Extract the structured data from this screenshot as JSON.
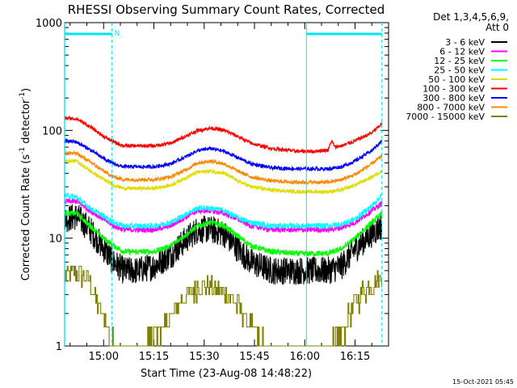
{
  "chart_data": {
    "type": "line",
    "title": "RHESSI Observing Summary Count Rates, Corrected",
    "xlabel": "Start Time (23-Aug-08 14:48:22)",
    "ylabel_main": "Corrected Count Rate (s",
    "ylabel_sup1": "-1",
    "ylabel_mid": " detector",
    "ylabel_sup2": "-1",
    "ylabel_end": ")",
    "yscale": "log",
    "ylim": [
      1,
      1000
    ],
    "xlim_min": [
      48.37,
      125
    ],
    "x_ticks": [
      {
        "value": 60,
        "label": "15:00"
      },
      {
        "value": 75,
        "label": "15:15"
      },
      {
        "value": 90,
        "label": "15:30"
      },
      {
        "value": 105,
        "label": "15:45"
      },
      {
        "value": 120,
        "label": "16:00"
      },
      {
        "value": 135,
        "label": "16:15"
      }
    ],
    "y_ticks": [
      {
        "value": 1,
        "label": "1"
      },
      {
        "value": 10,
        "label": "10"
      },
      {
        "value": 100,
        "label": "100"
      },
      {
        "value": 1000,
        "label": "1000"
      }
    ],
    "legend_header": [
      "Det 1,3,4,5,6,9,",
      "Att 0"
    ],
    "series": [
      {
        "name": "3 - 6 keV",
        "color": "#000000",
        "noise": 0.1,
        "points": [
          [
            48.4,
            15
          ],
          [
            52,
            16
          ],
          [
            56,
            12
          ],
          [
            60,
            8
          ],
          [
            63,
            6
          ],
          [
            66,
            5
          ],
          [
            70,
            5
          ],
          [
            75,
            5.5
          ],
          [
            80,
            7
          ],
          [
            85,
            10
          ],
          [
            88,
            12
          ],
          [
            92,
            12
          ],
          [
            96,
            11
          ],
          [
            100,
            8
          ],
          [
            104,
            6
          ],
          [
            110,
            5
          ],
          [
            118,
            5
          ],
          [
            123,
            5
          ],
          [
            127,
            5
          ],
          [
            131,
            5.5
          ],
          [
            135,
            8
          ],
          [
            140,
            11
          ],
          [
            143,
            13
          ]
        ]
      },
      {
        "name": "6 - 12 keV",
        "color": "#ff00ff",
        "noise": 0.06,
        "points": [
          [
            48.4,
            22
          ],
          [
            52,
            22
          ],
          [
            56,
            18
          ],
          [
            60,
            15
          ],
          [
            63,
            13
          ],
          [
            66,
            12
          ],
          [
            75,
            12
          ],
          [
            80,
            13
          ],
          [
            85,
            16
          ],
          [
            88,
            18
          ],
          [
            92,
            18
          ],
          [
            96,
            17
          ],
          [
            100,
            15
          ],
          [
            104,
            13
          ],
          [
            110,
            12
          ],
          [
            118,
            12
          ],
          [
            123,
            12
          ],
          [
            127,
            12
          ],
          [
            131,
            12.5
          ],
          [
            135,
            14
          ],
          [
            140,
            18
          ],
          [
            143,
            21
          ]
        ]
      },
      {
        "name": "12 - 25 keV",
        "color": "#00ff00",
        "noise": 0.06,
        "points": [
          [
            48.4,
            17
          ],
          [
            52,
            17
          ],
          [
            56,
            13
          ],
          [
            60,
            10
          ],
          [
            63,
            8.5
          ],
          [
            66,
            7.5
          ],
          [
            75,
            7.5
          ],
          [
            80,
            8.5
          ],
          [
            85,
            11
          ],
          [
            88,
            13
          ],
          [
            92,
            14
          ],
          [
            96,
            13
          ],
          [
            100,
            10.5
          ],
          [
            104,
            8.5
          ],
          [
            110,
            7.5
          ],
          [
            118,
            7.2
          ],
          [
            123,
            7.2
          ],
          [
            127,
            7.2
          ],
          [
            131,
            8
          ],
          [
            135,
            10
          ],
          [
            140,
            14
          ],
          [
            143,
            17
          ]
        ]
      },
      {
        "name": "25 - 50 keV",
        "color": "#00ffff",
        "noise": 0.06,
        "points": [
          [
            48.4,
            25
          ],
          [
            52,
            24
          ],
          [
            56,
            19
          ],
          [
            60,
            16
          ],
          [
            63,
            14
          ],
          [
            66,
            13
          ],
          [
            75,
            13
          ],
          [
            80,
            14
          ],
          [
            85,
            17
          ],
          [
            88,
            19
          ],
          [
            92,
            19
          ],
          [
            96,
            18
          ],
          [
            100,
            15.5
          ],
          [
            104,
            14
          ],
          [
            110,
            13
          ],
          [
            118,
            13
          ],
          [
            123,
            13
          ],
          [
            127,
            13
          ],
          [
            131,
            13.5
          ],
          [
            135,
            15
          ],
          [
            140,
            20
          ],
          [
            143,
            25
          ]
        ]
      },
      {
        "name": "50 - 100 keV",
        "color": "#dddd00",
        "noise": 0.04,
        "points": [
          [
            48.4,
            52
          ],
          [
            52,
            52
          ],
          [
            56,
            42
          ],
          [
            60,
            35
          ],
          [
            63,
            31
          ],
          [
            66,
            29
          ],
          [
            75,
            29
          ],
          [
            80,
            31
          ],
          [
            85,
            37
          ],
          [
            88,
            41
          ],
          [
            92,
            42
          ],
          [
            96,
            40
          ],
          [
            100,
            34
          ],
          [
            104,
            30
          ],
          [
            110,
            28
          ],
          [
            118,
            27
          ],
          [
            123,
            27
          ],
          [
            127,
            27
          ],
          [
            131,
            28
          ],
          [
            135,
            31
          ],
          [
            140,
            37
          ],
          [
            143,
            42
          ]
        ]
      },
      {
        "name": "100 - 300 keV",
        "color": "#ff0000",
        "noise": 0.04,
        "points": [
          [
            48.4,
            130
          ],
          [
            52,
            128
          ],
          [
            56,
            108
          ],
          [
            60,
            88
          ],
          [
            63,
            78
          ],
          [
            66,
            72
          ],
          [
            75,
            72
          ],
          [
            80,
            76
          ],
          [
            85,
            90
          ],
          [
            88,
            100
          ],
          [
            92,
            105
          ],
          [
            96,
            100
          ],
          [
            100,
            88
          ],
          [
            104,
            76
          ],
          [
            110,
            68
          ],
          [
            118,
            64
          ],
          [
            123,
            64
          ],
          [
            127,
            66
          ],
          [
            128,
            80
          ],
          [
            129,
            70
          ],
          [
            131,
            72
          ],
          [
            135,
            80
          ],
          [
            140,
            95
          ],
          [
            143,
            115
          ]
        ]
      },
      {
        "name": "300 - 800 keV",
        "color": "#0000ff",
        "noise": 0.04,
        "points": [
          [
            48.4,
            80
          ],
          [
            52,
            78
          ],
          [
            56,
            66
          ],
          [
            60,
            55
          ],
          [
            63,
            49
          ],
          [
            66,
            46
          ],
          [
            75,
            46
          ],
          [
            80,
            49
          ],
          [
            85,
            58
          ],
          [
            88,
            65
          ],
          [
            92,
            68
          ],
          [
            96,
            64
          ],
          [
            100,
            56
          ],
          [
            104,
            49
          ],
          [
            110,
            45
          ],
          [
            118,
            44
          ],
          [
            123,
            44
          ],
          [
            127,
            44
          ],
          [
            131,
            46
          ],
          [
            135,
            52
          ],
          [
            140,
            65
          ],
          [
            143,
            80
          ]
        ]
      },
      {
        "name": "800 - 7000 keV",
        "color": "#ff8800",
        "noise": 0.04,
        "points": [
          [
            48.4,
            62
          ],
          [
            52,
            61
          ],
          [
            56,
            51
          ],
          [
            60,
            42
          ],
          [
            63,
            37
          ],
          [
            66,
            35
          ],
          [
            75,
            35
          ],
          [
            80,
            37
          ],
          [
            85,
            44
          ],
          [
            88,
            50
          ],
          [
            92,
            52
          ],
          [
            96,
            49
          ],
          [
            100,
            42
          ],
          [
            104,
            37
          ],
          [
            110,
            34
          ],
          [
            118,
            33
          ],
          [
            123,
            33
          ],
          [
            127,
            33
          ],
          [
            131,
            35
          ],
          [
            135,
            39
          ],
          [
            140,
            49
          ],
          [
            143,
            58
          ]
        ]
      },
      {
        "name": "7000 - 15000 keV",
        "color": "#808000",
        "noise": 0.0,
        "points": [
          [
            48.4,
            4.5
          ],
          [
            52,
            4.8
          ],
          [
            56,
            4
          ],
          [
            58,
            2.5
          ],
          [
            60,
            1.8
          ],
          [
            62,
            1.3
          ],
          [
            65,
            1
          ],
          [
            72,
            1
          ],
          [
            75,
            1.4
          ],
          [
            78,
            1.5
          ],
          [
            80,
            1.8
          ],
          [
            84,
            2.8
          ],
          [
            88,
            3.6
          ],
          [
            91,
            3.6
          ],
          [
            94,
            3.3
          ],
          [
            97,
            3
          ],
          [
            100,
            2.4
          ],
          [
            103,
            1.6
          ],
          [
            106,
            1.2
          ],
          [
            109,
            1
          ],
          [
            125,
            1
          ],
          [
            128,
            1
          ],
          [
            131,
            1.3
          ],
          [
            134,
            2.2
          ],
          [
            137,
            3.2
          ],
          [
            140,
            3.8
          ],
          [
            143,
            4.5
          ]
        ]
      }
    ],
    "attenuator_segments": [
      [
        48.4,
        62.5
      ],
      [
        120.5,
        143
      ]
    ],
    "attenuator_marker": "N",
    "dashed_lines": [
      62.5,
      143
    ],
    "solid_lines": [
      48.4,
      120.5
    ]
  },
  "footer": {
    "timestamp": "15-Oct-2021 05:45"
  }
}
